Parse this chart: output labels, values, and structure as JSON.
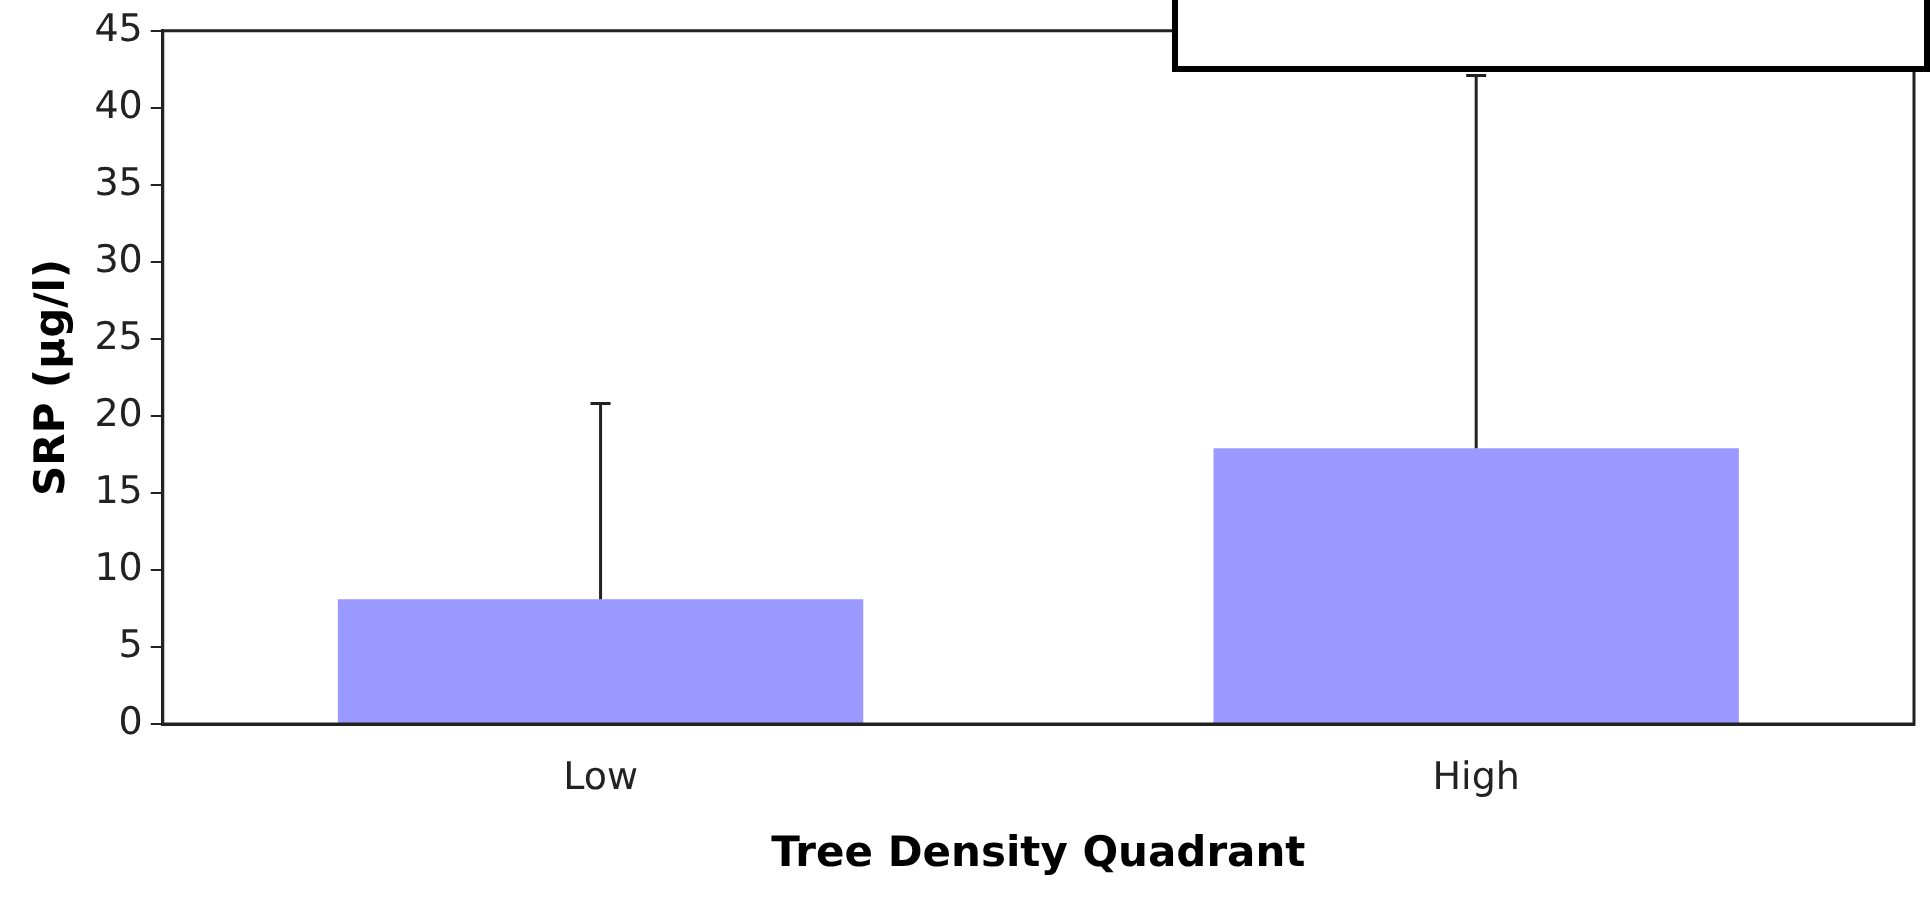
{
  "chart_data": {
    "type": "bar",
    "xlabel": "Tree Density Quadrant",
    "ylabel": "SRP (µg/l)",
    "categories": [
      "Low",
      "High"
    ],
    "values": [
      8.1,
      17.9
    ],
    "color": "#9999ff",
    "errors": [
      [
        8.1,
        20.8
      ],
      [
        17.9,
        42.1
      ]
    ],
    "ylim": [
      0,
      45
    ],
    "yticks": [
      0,
      5,
      10,
      15,
      20,
      25,
      30,
      35,
      40,
      45
    ],
    "grid": false,
    "legend": false
  }
}
